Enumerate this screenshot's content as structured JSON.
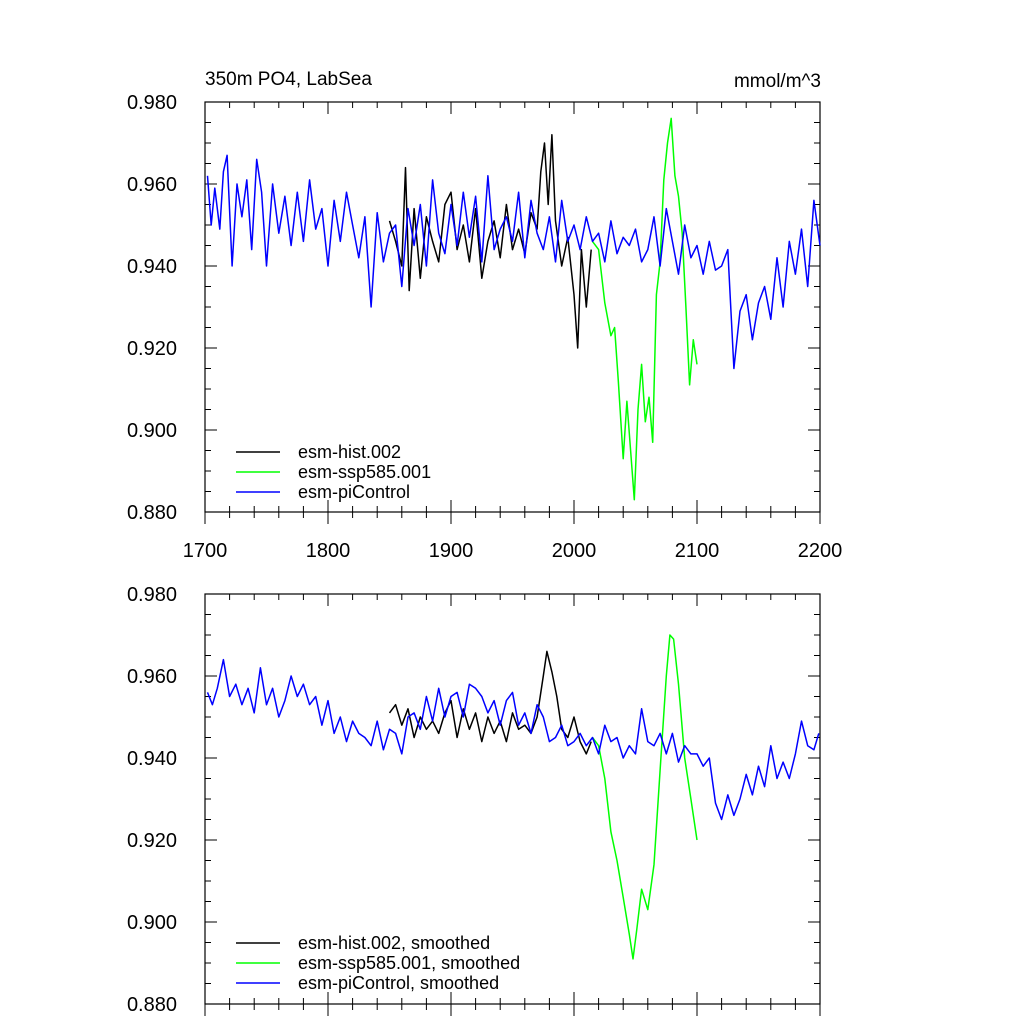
{
  "figure": {
    "title_left": "350m PO4, LabSea",
    "title_right": "mmol/m^3"
  },
  "chart_data": [
    {
      "type": "line",
      "title": "350m PO4, LabSea",
      "units": "mmol/m^3",
      "xlim": [
        1700,
        2200
      ],
      "ylim": [
        0.88,
        0.98
      ],
      "x_ticks": [
        1700,
        1800,
        1900,
        2000,
        2100,
        2200
      ],
      "x_tick_labels": [
        "1700",
        "1800",
        "1900",
        "2000",
        "2100",
        "2200"
      ],
      "y_ticks": [
        0.88,
        0.9,
        0.92,
        0.94,
        0.96,
        0.98
      ],
      "y_tick_labels": [
        "0.880",
        "0.900",
        "0.920",
        "0.940",
        "0.960",
        "0.980"
      ],
      "legend_position": "bottom-left",
      "series": [
        {
          "name": "esm-hist.002",
          "color": "#000000",
          "x": [
            1850,
            1855,
            1860,
            1863,
            1866,
            1870,
            1875,
            1880,
            1885,
            1890,
            1895,
            1900,
            1905,
            1910,
            1915,
            1920,
            1925,
            1930,
            1935,
            1940,
            1945,
            1950,
            1955,
            1960,
            1965,
            1970,
            1973,
            1976,
            1979,
            1982,
            1985,
            1990,
            1995,
            2000,
            2003,
            2006,
            2010,
            2014
          ],
          "values": [
            0.951,
            0.946,
            0.94,
            0.964,
            0.934,
            0.954,
            0.937,
            0.952,
            0.946,
            0.941,
            0.955,
            0.958,
            0.944,
            0.95,
            0.941,
            0.954,
            0.937,
            0.946,
            0.951,
            0.942,
            0.955,
            0.944,
            0.949,
            0.943,
            0.953,
            0.949,
            0.963,
            0.97,
            0.955,
            0.972,
            0.951,
            0.94,
            0.947,
            0.933,
            0.92,
            0.944,
            0.93,
            0.944
          ]
        },
        {
          "name": "esm-ssp585.001",
          "color": "#00ff00",
          "x": [
            2015,
            2020,
            2025,
            2030,
            2033,
            2036,
            2040,
            2043,
            2046,
            2049,
            2052,
            2055,
            2058,
            2061,
            2064,
            2067,
            2070,
            2073,
            2076,
            2079,
            2082,
            2085,
            2088,
            2091,
            2094,
            2097,
            2100
          ],
          "values": [
            0.946,
            0.944,
            0.931,
            0.923,
            0.925,
            0.912,
            0.893,
            0.907,
            0.895,
            0.883,
            0.905,
            0.916,
            0.902,
            0.908,
            0.897,
            0.933,
            0.941,
            0.961,
            0.97,
            0.976,
            0.962,
            0.957,
            0.948,
            0.93,
            0.911,
            0.922,
            0.916
          ]
        },
        {
          "name": "esm-piControl",
          "color": "#0000ff",
          "x": [
            1702,
            1705,
            1708,
            1712,
            1715,
            1718,
            1722,
            1726,
            1730,
            1734,
            1738,
            1742,
            1746,
            1750,
            1755,
            1760,
            1765,
            1770,
            1775,
            1780,
            1785,
            1790,
            1795,
            1800,
            1805,
            1810,
            1815,
            1820,
            1825,
            1830,
            1835,
            1840,
            1845,
            1850,
            1855,
            1860,
            1865,
            1870,
            1875,
            1880,
            1885,
            1890,
            1895,
            1900,
            1905,
            1910,
            1915,
            1920,
            1925,
            1930,
            1935,
            1940,
            1945,
            1950,
            1955,
            1960,
            1965,
            1970,
            1975,
            1980,
            1985,
            1990,
            1995,
            2000,
            2005,
            2010,
            2015,
            2020,
            2025,
            2030,
            2035,
            2040,
            2045,
            2050,
            2055,
            2060,
            2065,
            2070,
            2075,
            2080,
            2085,
            2090,
            2095,
            2100,
            2105,
            2110,
            2115,
            2120,
            2125,
            2130,
            2135,
            2140,
            2145,
            2150,
            2155,
            2160,
            2165,
            2170,
            2175,
            2180,
            2185,
            2190,
            2195,
            2200
          ],
          "values": [
            0.962,
            0.95,
            0.959,
            0.949,
            0.963,
            0.967,
            0.94,
            0.96,
            0.952,
            0.961,
            0.944,
            0.966,
            0.958,
            0.94,
            0.96,
            0.948,
            0.957,
            0.945,
            0.958,
            0.946,
            0.961,
            0.949,
            0.954,
            0.94,
            0.956,
            0.946,
            0.958,
            0.95,
            0.942,
            0.952,
            0.93,
            0.953,
            0.941,
            0.948,
            0.95,
            0.935,
            0.954,
            0.945,
            0.955,
            0.94,
            0.961,
            0.948,
            0.943,
            0.955,
            0.945,
            0.958,
            0.947,
            0.957,
            0.941,
            0.962,
            0.944,
            0.949,
            0.952,
            0.946,
            0.958,
            0.942,
            0.956,
            0.948,
            0.944,
            0.952,
            0.941,
            0.956,
            0.946,
            0.95,
            0.944,
            0.952,
            0.946,
            0.948,
            0.941,
            0.951,
            0.943,
            0.947,
            0.945,
            0.949,
            0.941,
            0.944,
            0.952,
            0.94,
            0.954,
            0.946,
            0.938,
            0.95,
            0.942,
            0.945,
            0.938,
            0.946,
            0.939,
            0.94,
            0.944,
            0.915,
            0.929,
            0.933,
            0.922,
            0.931,
            0.935,
            0.927,
            0.942,
            0.93,
            0.946,
            0.938,
            0.949,
            0.935,
            0.956,
            0.945
          ]
        }
      ]
    },
    {
      "type": "line",
      "xlim": [
        1700,
        2200
      ],
      "ylim": [
        0.88,
        0.98
      ],
      "x_ticks": [
        1700,
        1800,
        1900,
        2000,
        2100,
        2200
      ],
      "y_ticks": [
        0.88,
        0.9,
        0.92,
        0.94,
        0.96,
        0.98
      ],
      "y_tick_labels": [
        "0.880",
        "0.900",
        "0.920",
        "0.940",
        "0.960",
        "0.980"
      ],
      "legend_position": "bottom-left",
      "series": [
        {
          "name": "esm-hist.002, smoothed",
          "color": "#000000",
          "x": [
            1850,
            1855,
            1860,
            1865,
            1870,
            1875,
            1880,
            1885,
            1890,
            1895,
            1900,
            1905,
            1910,
            1915,
            1920,
            1925,
            1930,
            1935,
            1940,
            1945,
            1950,
            1955,
            1960,
            1965,
            1970,
            1975,
            1978,
            1982,
            1986,
            1990,
            1995,
            2000,
            2005,
            2010,
            2014
          ],
          "values": [
            0.951,
            0.953,
            0.948,
            0.952,
            0.945,
            0.95,
            0.947,
            0.949,
            0.946,
            0.951,
            0.954,
            0.945,
            0.952,
            0.947,
            0.951,
            0.944,
            0.95,
            0.946,
            0.949,
            0.944,
            0.951,
            0.947,
            0.948,
            0.946,
            0.95,
            0.96,
            0.966,
            0.961,
            0.955,
            0.947,
            0.945,
            0.95,
            0.944,
            0.941,
            0.944
          ]
        },
        {
          "name": "esm-ssp585.001, smoothed",
          "color": "#00ff00",
          "x": [
            2015,
            2020,
            2025,
            2030,
            2035,
            2040,
            2045,
            2048,
            2051,
            2055,
            2060,
            2065,
            2070,
            2075,
            2078,
            2081,
            2085,
            2090,
            2095,
            2100
          ],
          "values": [
            0.945,
            0.943,
            0.935,
            0.922,
            0.915,
            0.906,
            0.897,
            0.891,
            0.898,
            0.908,
            0.903,
            0.914,
            0.937,
            0.96,
            0.97,
            0.969,
            0.958,
            0.94,
            0.93,
            0.92
          ]
        },
        {
          "name": "esm-piControl, smoothed",
          "color": "#0000ff",
          "x": [
            1702,
            1706,
            1710,
            1715,
            1720,
            1725,
            1730,
            1735,
            1740,
            1745,
            1750,
            1755,
            1760,
            1765,
            1770,
            1775,
            1780,
            1785,
            1790,
            1795,
            1800,
            1805,
            1810,
            1815,
            1820,
            1825,
            1830,
            1835,
            1840,
            1845,
            1850,
            1855,
            1860,
            1865,
            1870,
            1875,
            1880,
            1885,
            1890,
            1895,
            1900,
            1905,
            1910,
            1915,
            1920,
            1925,
            1930,
            1935,
            1940,
            1945,
            1950,
            1955,
            1960,
            1965,
            1970,
            1975,
            1980,
            1985,
            1990,
            1995,
            2000,
            2005,
            2010,
            2015,
            2020,
            2025,
            2030,
            2035,
            2040,
            2045,
            2050,
            2055,
            2060,
            2065,
            2070,
            2075,
            2080,
            2085,
            2090,
            2095,
            2100,
            2105,
            2110,
            2115,
            2120,
            2125,
            2130,
            2135,
            2140,
            2145,
            2150,
            2155,
            2160,
            2165,
            2170,
            2175,
            2180,
            2185,
            2190,
            2195,
            2199
          ],
          "values": [
            0.956,
            0.953,
            0.957,
            0.964,
            0.955,
            0.958,
            0.953,
            0.957,
            0.951,
            0.962,
            0.953,
            0.957,
            0.95,
            0.954,
            0.96,
            0.955,
            0.958,
            0.953,
            0.955,
            0.948,
            0.954,
            0.946,
            0.95,
            0.944,
            0.949,
            0.946,
            0.945,
            0.943,
            0.949,
            0.942,
            0.947,
            0.946,
            0.941,
            0.95,
            0.951,
            0.947,
            0.955,
            0.949,
            0.957,
            0.95,
            0.955,
            0.956,
            0.95,
            0.958,
            0.957,
            0.955,
            0.951,
            0.954,
            0.948,
            0.954,
            0.956,
            0.948,
            0.951,
            0.946,
            0.953,
            0.95,
            0.944,
            0.945,
            0.948,
            0.943,
            0.944,
            0.946,
            0.943,
            0.945,
            0.941,
            0.948,
            0.944,
            0.945,
            0.94,
            0.943,
            0.941,
            0.952,
            0.944,
            0.943,
            0.946,
            0.941,
            0.946,
            0.939,
            0.943,
            0.941,
            0.941,
            0.938,
            0.94,
            0.929,
            0.925,
            0.931,
            0.926,
            0.93,
            0.936,
            0.931,
            0.938,
            0.933,
            0.943,
            0.935,
            0.939,
            0.935,
            0.941,
            0.949,
            0.943,
            0.942,
            0.946
          ]
        }
      ]
    }
  ]
}
